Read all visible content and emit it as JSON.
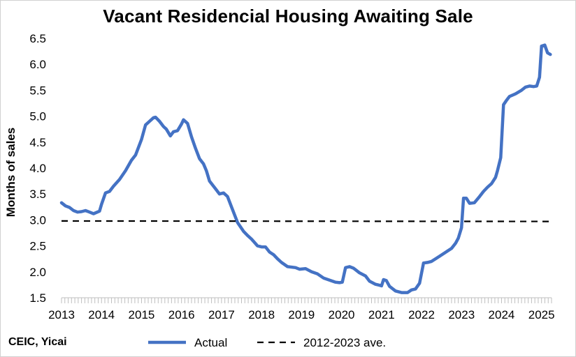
{
  "chart_data": {
    "type": "line",
    "title": "Vacant Residencial Housing Awaiting Sale",
    "xlabel": "",
    "ylabel": "Months of sales",
    "xlim": [
      2013,
      2025.25
    ],
    "ylim": [
      1.5,
      6.5
    ],
    "x_ticks": [
      "2013",
      "2014",
      "2015",
      "2016",
      "2017",
      "2018",
      "2019",
      "2020",
      "2021",
      "2022",
      "2023",
      "2024",
      "2025"
    ],
    "y_ticks": [
      "1.5",
      "2.0",
      "2.5",
      "3.0",
      "3.5",
      "4.0",
      "4.5",
      "5.0",
      "5.5",
      "6.0",
      "6.5"
    ],
    "series": [
      {
        "name": "Actual",
        "color": "#4472C4",
        "style": "solid",
        "points": [
          [
            2013.0,
            3.33
          ],
          [
            2013.1,
            3.27
          ],
          [
            2013.2,
            3.24
          ],
          [
            2013.3,
            3.18
          ],
          [
            2013.4,
            3.15
          ],
          [
            2013.5,
            3.16
          ],
          [
            2013.6,
            3.18
          ],
          [
            2013.7,
            3.15
          ],
          [
            2013.8,
            3.12
          ],
          [
            2013.95,
            3.17
          ],
          [
            2014.0,
            3.3
          ],
          [
            2014.1,
            3.52
          ],
          [
            2014.2,
            3.55
          ],
          [
            2014.3,
            3.65
          ],
          [
            2014.45,
            3.78
          ],
          [
            2014.6,
            3.95
          ],
          [
            2014.75,
            4.15
          ],
          [
            2014.85,
            4.25
          ],
          [
            2015.0,
            4.55
          ],
          [
            2015.1,
            4.83
          ],
          [
            2015.2,
            4.9
          ],
          [
            2015.3,
            4.97
          ],
          [
            2015.35,
            4.98
          ],
          [
            2015.45,
            4.9
          ],
          [
            2015.55,
            4.8
          ],
          [
            2015.62,
            4.75
          ],
          [
            2015.72,
            4.62
          ],
          [
            2015.8,
            4.7
          ],
          [
            2015.9,
            4.72
          ],
          [
            2016.0,
            4.85
          ],
          [
            2016.05,
            4.93
          ],
          [
            2016.15,
            4.86
          ],
          [
            2016.25,
            4.6
          ],
          [
            2016.35,
            4.38
          ],
          [
            2016.45,
            4.18
          ],
          [
            2016.55,
            4.08
          ],
          [
            2016.62,
            3.95
          ],
          [
            2016.7,
            3.75
          ],
          [
            2016.85,
            3.6
          ],
          [
            2016.95,
            3.5
          ],
          [
            2017.05,
            3.52
          ],
          [
            2017.15,
            3.45
          ],
          [
            2017.25,
            3.25
          ],
          [
            2017.4,
            2.95
          ],
          [
            2017.55,
            2.78
          ],
          [
            2017.65,
            2.7
          ],
          [
            2017.75,
            2.63
          ],
          [
            2017.9,
            2.5
          ],
          [
            2018.0,
            2.48
          ],
          [
            2018.1,
            2.48
          ],
          [
            2018.2,
            2.38
          ],
          [
            2018.3,
            2.33
          ],
          [
            2018.4,
            2.25
          ],
          [
            2018.5,
            2.18
          ],
          [
            2018.65,
            2.1
          ],
          [
            2018.85,
            2.08
          ],
          [
            2018.95,
            2.05
          ],
          [
            2019.1,
            2.06
          ],
          [
            2019.25,
            2.0
          ],
          [
            2019.4,
            1.96
          ],
          [
            2019.55,
            1.88
          ],
          [
            2019.7,
            1.84
          ],
          [
            2019.85,
            1.8
          ],
          [
            2019.95,
            1.79
          ],
          [
            2020.02,
            1.8
          ],
          [
            2020.1,
            2.08
          ],
          [
            2020.2,
            2.1
          ],
          [
            2020.3,
            2.07
          ],
          [
            2020.45,
            1.98
          ],
          [
            2020.6,
            1.92
          ],
          [
            2020.7,
            1.82
          ],
          [
            2020.85,
            1.76
          ],
          [
            2020.95,
            1.74
          ],
          [
            2021.0,
            1.73
          ],
          [
            2021.05,
            1.85
          ],
          [
            2021.12,
            1.83
          ],
          [
            2021.2,
            1.72
          ],
          [
            2021.35,
            1.63
          ],
          [
            2021.5,
            1.6
          ],
          [
            2021.65,
            1.6
          ],
          [
            2021.75,
            1.65
          ],
          [
            2021.85,
            1.67
          ],
          [
            2021.95,
            1.78
          ],
          [
            2022.05,
            2.17
          ],
          [
            2022.15,
            2.18
          ],
          [
            2022.25,
            2.2
          ],
          [
            2022.35,
            2.25
          ],
          [
            2022.45,
            2.3
          ],
          [
            2022.55,
            2.35
          ],
          [
            2022.65,
            2.4
          ],
          [
            2022.75,
            2.45
          ],
          [
            2022.85,
            2.55
          ],
          [
            2022.92,
            2.65
          ],
          [
            2023.0,
            2.85
          ],
          [
            2023.05,
            3.42
          ],
          [
            2023.12,
            3.42
          ],
          [
            2023.2,
            3.32
          ],
          [
            2023.32,
            3.33
          ],
          [
            2023.45,
            3.45
          ],
          [
            2023.55,
            3.55
          ],
          [
            2023.65,
            3.63
          ],
          [
            2023.75,
            3.7
          ],
          [
            2023.85,
            3.82
          ],
          [
            2023.9,
            3.95
          ],
          [
            2023.98,
            4.2
          ],
          [
            2024.05,
            5.22
          ],
          [
            2024.12,
            5.3
          ],
          [
            2024.2,
            5.38
          ],
          [
            2024.35,
            5.43
          ],
          [
            2024.5,
            5.5
          ],
          [
            2024.6,
            5.56
          ],
          [
            2024.7,
            5.58
          ],
          [
            2024.8,
            5.57
          ],
          [
            2024.88,
            5.58
          ],
          [
            2024.95,
            5.75
          ],
          [
            2025.0,
            6.35
          ],
          [
            2025.08,
            6.37
          ],
          [
            2025.15,
            6.22
          ],
          [
            2025.22,
            6.19
          ]
        ]
      },
      {
        "name": "2012-2023 ave.",
        "color": "#000000",
        "style": "dashed",
        "points": [
          [
            2013.0,
            2.98
          ],
          [
            2025.22,
            2.97
          ]
        ]
      }
    ],
    "legend_position": "bottom-center",
    "grid": false
  },
  "source_note": "CEIC, Yicai"
}
